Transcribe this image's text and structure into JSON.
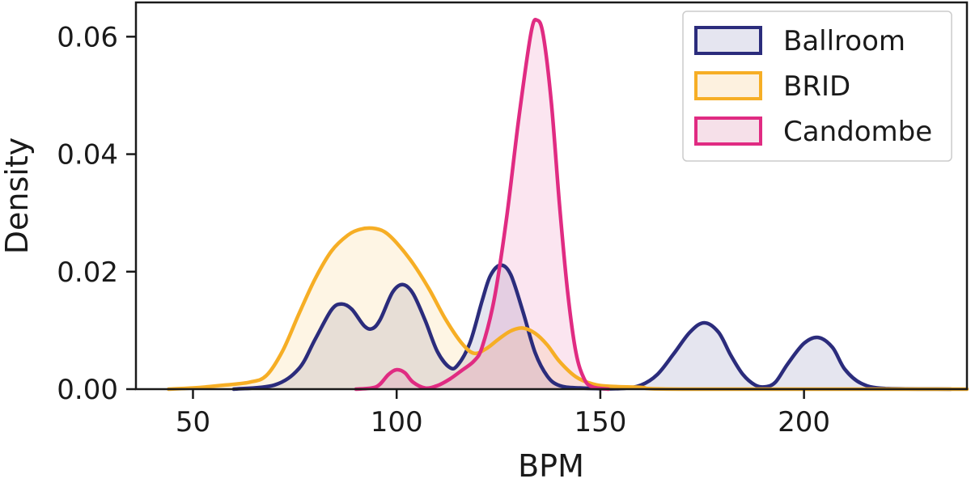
{
  "chart_data": {
    "type": "area",
    "title": "",
    "xlabel": "BPM",
    "ylabel": "Density",
    "xlim": [
      36,
      240
    ],
    "ylim": [
      0,
      0.0628
    ],
    "grid": false,
    "legend_position": "top-right",
    "x_ticks": [
      {
        "value": 50,
        "label": "50"
      },
      {
        "value": 100,
        "label": "100"
      },
      {
        "value": 150,
        "label": "150"
      },
      {
        "value": 200,
        "label": "200"
      }
    ],
    "y_ticks": [
      {
        "value": 0,
        "label": "0.00"
      },
      {
        "value": 0.02,
        "label": "0.02"
      },
      {
        "value": 0.04,
        "label": "0.04"
      },
      {
        "value": 0.06,
        "label": "0.06"
      }
    ],
    "series": [
      {
        "name": "Ballroom",
        "color": "#2b2c7c",
        "fill": "#e5e5f0",
        "points": [
          [
            60,
            0
          ],
          [
            70,
            0.0007
          ],
          [
            76,
            0.0035
          ],
          [
            80,
            0.0085
          ],
          [
            84,
            0.0135
          ],
          [
            86.5,
            0.0145
          ],
          [
            89,
            0.0136
          ],
          [
            92,
            0.0108
          ],
          [
            94,
            0.0103
          ],
          [
            96,
            0.0119
          ],
          [
            99,
            0.0165
          ],
          [
            101.5,
            0.0178
          ],
          [
            104,
            0.0163
          ],
          [
            107,
            0.0117
          ],
          [
            110,
            0.0064
          ],
          [
            113,
            0.0037
          ],
          [
            115,
            0.0041
          ],
          [
            118,
            0.0079
          ],
          [
            121,
            0.0151
          ],
          [
            123,
            0.0193
          ],
          [
            125.5,
            0.0211
          ],
          [
            128,
            0.0195
          ],
          [
            131,
            0.0132
          ],
          [
            134,
            0.0062
          ],
          [
            137,
            0.0022
          ],
          [
            140,
            0.0006
          ],
          [
            145,
            0.0002
          ],
          [
            155,
            0.0001
          ],
          [
            160,
            0.0007
          ],
          [
            164,
            0.0025
          ],
          [
            168,
            0.006
          ],
          [
            172,
            0.0097
          ],
          [
            175.5,
            0.0113
          ],
          [
            179,
            0.0097
          ],
          [
            182,
            0.0058
          ],
          [
            185,
            0.0025
          ],
          [
            188,
            0.0007
          ],
          [
            190.5,
            0.0004
          ],
          [
            193,
            0.0012
          ],
          [
            196,
            0.0043
          ],
          [
            200,
            0.0078
          ],
          [
            203.5,
            0.0088
          ],
          [
            207,
            0.0071
          ],
          [
            210,
            0.0034
          ],
          [
            214,
            0.001
          ],
          [
            220,
            0.0001
          ],
          [
            236,
            0
          ]
        ]
      },
      {
        "name": "BRID",
        "color": "#f6ae25",
        "fill": "#fdf1df",
        "points": [
          [
            44,
            0
          ],
          [
            50,
            0.0002
          ],
          [
            58,
            0.0007
          ],
          [
            64,
            0.0012
          ],
          [
            68,
            0.0023
          ],
          [
            72,
            0.0065
          ],
          [
            76,
            0.0128
          ],
          [
            80,
            0.0188
          ],
          [
            84,
            0.0235
          ],
          [
            88,
            0.0262
          ],
          [
            91,
            0.0272
          ],
          [
            94,
            0.0274
          ],
          [
            97,
            0.0268
          ],
          [
            100,
            0.0249
          ],
          [
            104,
            0.0214
          ],
          [
            108,
            0.017
          ],
          [
            112,
            0.0119
          ],
          [
            116,
            0.0078
          ],
          [
            119,
            0.0061
          ],
          [
            122,
            0.0069
          ],
          [
            125,
            0.0085
          ],
          [
            128,
            0.0099
          ],
          [
            131,
            0.0104
          ],
          [
            134,
            0.0095
          ],
          [
            137,
            0.0075
          ],
          [
            140,
            0.0047
          ],
          [
            144,
            0.0021
          ],
          [
            148,
            0.0009
          ],
          [
            152,
            0.0005
          ],
          [
            160,
            0.0003
          ],
          [
            170,
            0
          ],
          [
            240,
            0
          ]
        ]
      },
      {
        "name": "Candombe",
        "color": "#e02b82",
        "fill": "#f6e0e9",
        "points": [
          [
            90,
            0
          ],
          [
            95,
            0.0004
          ],
          [
            98,
            0.0025
          ],
          [
            100,
            0.0033
          ],
          [
            102,
            0.0028
          ],
          [
            104,
            0.0012
          ],
          [
            107,
            0.0002
          ],
          [
            110,
            0.0006
          ],
          [
            113,
            0.0017
          ],
          [
            116,
            0.0032
          ],
          [
            119,
            0.0048
          ],
          [
            121,
            0.0072
          ],
          [
            124,
            0.0155
          ],
          [
            127,
            0.0292
          ],
          [
            130,
            0.0462
          ],
          [
            133,
            0.0607
          ],
          [
            134.5,
            0.0628
          ],
          [
            136,
            0.0602
          ],
          [
            138,
            0.0486
          ],
          [
            140,
            0.0312
          ],
          [
            142,
            0.0164
          ],
          [
            144,
            0.0063
          ],
          [
            146,
            0.0018
          ],
          [
            148,
            0.0004
          ],
          [
            152,
            0
          ]
        ]
      }
    ]
  }
}
